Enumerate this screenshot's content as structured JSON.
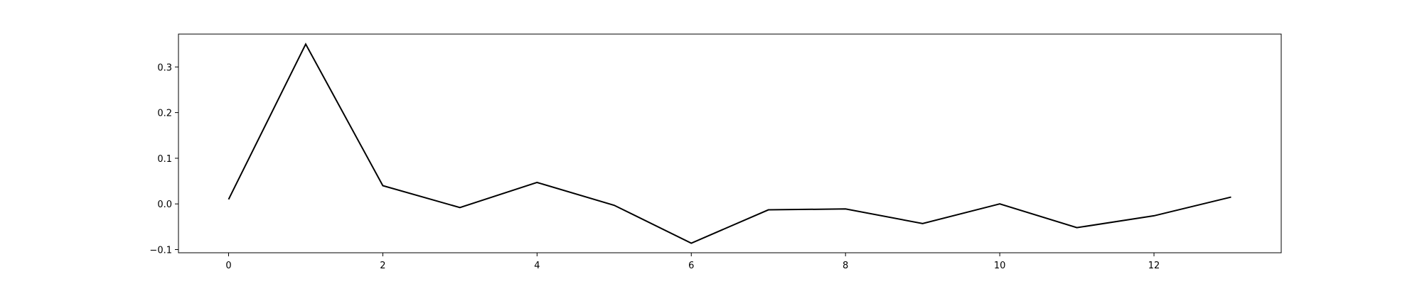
{
  "chart_data": {
    "type": "line",
    "title": "",
    "xlabel": "",
    "ylabel": "",
    "x": [
      0,
      1,
      2,
      3,
      4,
      5,
      6,
      7,
      8,
      9,
      10,
      11,
      12,
      13
    ],
    "series": [
      {
        "values": [
          0.01,
          0.35,
          0.04,
          -0.008,
          0.047,
          -0.003,
          -0.086,
          -0.013,
          -0.011,
          -0.043,
          0.0,
          -0.052,
          -0.026,
          0.015
        ],
        "color": "#000000"
      }
    ],
    "xlim": [
      -0.65,
      13.65
    ],
    "ylim": [
      -0.107,
      0.372
    ],
    "xticks": [
      0,
      2,
      4,
      6,
      8,
      10,
      12
    ],
    "xtick_labels": [
      "0",
      "2",
      "4",
      "6",
      "8",
      "10",
      "12"
    ],
    "yticks": [
      -0.1,
      0.0,
      0.1,
      0.2,
      0.3
    ],
    "ytick_labels": [
      "−0.1",
      "0.0",
      "0.1",
      "0.2",
      "0.3"
    ],
    "grid": false,
    "legend": "none"
  }
}
